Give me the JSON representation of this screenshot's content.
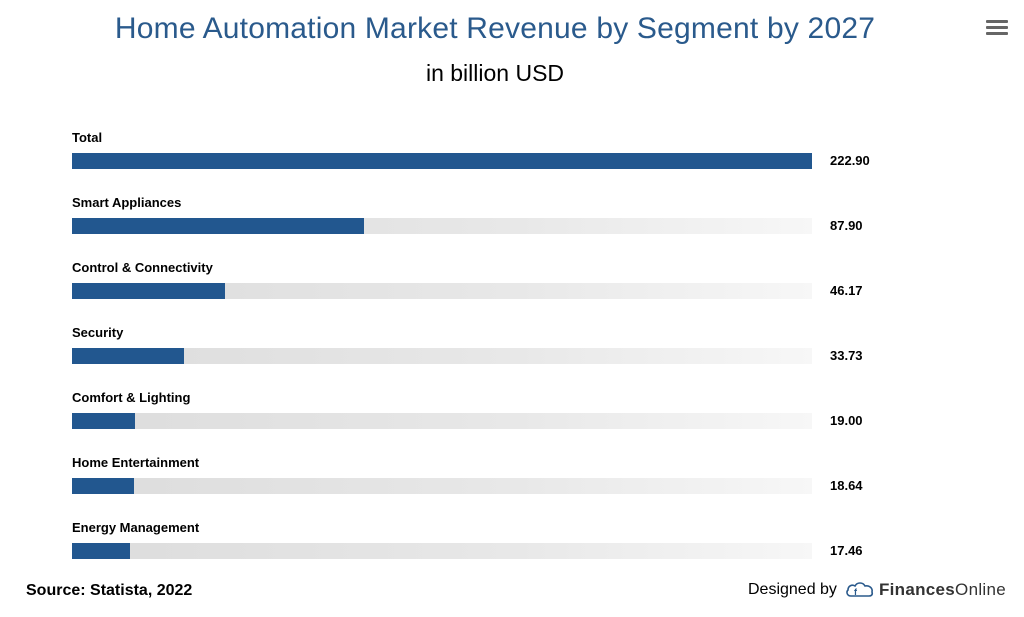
{
  "title": "Home Automation Market Revenue by Segment by 2027",
  "subtitle": "in billion USD",
  "menu_icon": "hamburger-menu-icon",
  "chart_data": {
    "type": "bar",
    "orientation": "horizontal",
    "title": "Home Automation Market Revenue by Segment by 2027",
    "subtitle": "in billion USD",
    "categories": [
      "Total",
      "Smart Appliances",
      "Control & Connectivity",
      "Security",
      "Comfort & Lighting",
      "Home Entertainment",
      "Energy Management"
    ],
    "values": [
      222.9,
      87.9,
      46.17,
      33.73,
      19.0,
      18.64,
      17.46
    ],
    "value_labels": [
      "222.90",
      "87.90",
      "46.17",
      "33.73",
      "19.00",
      "18.64",
      "17.46"
    ],
    "xlim": [
      0,
      222.9
    ],
    "grid": false,
    "legend": "none",
    "colors": {
      "bar": "#22578f",
      "track": "#e3e3e3",
      "title": "#2a5a8c"
    }
  },
  "footer": {
    "source": "Source: Statista, 2022",
    "credit_prefix": "Designed by",
    "brand_bold": "Finances",
    "brand_regular": "Online",
    "brand_logo_icon": "financesonline-logo-icon"
  }
}
